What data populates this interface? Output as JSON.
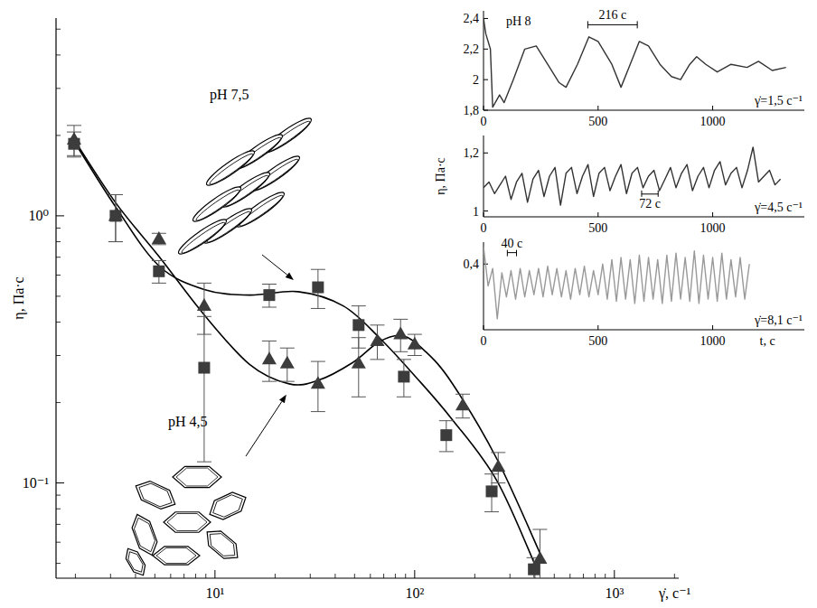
{
  "chart_data": [
    {
      "type": "scatter",
      "x_label": "γ̇, с⁻¹",
      "y_label": "η, Па·с",
      "log": true,
      "xlim": [
        1.6,
        2100
      ],
      "ylim": [
        0.044,
        5.5
      ],
      "xticks": [
        {
          "value": 10,
          "label": "10¹"
        },
        {
          "value": 100,
          "label": "10²"
        },
        {
          "value": 1000,
          "label": "10³"
        }
      ],
      "yticks": [
        {
          "value": 0.1,
          "label": "10⁻¹"
        },
        {
          "value": 1,
          "label": "10⁰"
        }
      ],
      "xticks_minor": [
        2,
        3,
        4,
        5,
        6,
        7,
        8,
        9,
        20,
        30,
        40,
        50,
        60,
        70,
        80,
        90,
        200,
        300,
        400,
        500,
        600,
        700,
        800,
        900,
        2000
      ],
      "yticks_minor": [
        0.05,
        0.06,
        0.07,
        0.08,
        0.09,
        0.2,
        0.3,
        0.4,
        0.5,
        0.6,
        0.7,
        0.8,
        0.9,
        2,
        3,
        4,
        5
      ],
      "series": [
        {
          "name": "pH 7,5",
          "marker": "square",
          "color": "#3c3c3c",
          "x": [
            1.97,
            3.18,
            5.24,
            8.83,
            18.7,
            32.8,
            52.4,
            88.3,
            144,
            243,
            395
          ],
          "values": [
            1.86,
            1.0,
            0.62,
            0.27,
            0.505,
            0.54,
            0.39,
            0.25,
            0.151,
            0.093,
            0.0475
          ],
          "errors": [
            0.2,
            0.2,
            0.06,
            0.15,
            0.05,
            0.09,
            0.07,
            0.04,
            0.02,
            0.015,
            0.005
          ],
          "fit": {
            "x": [
              1.97,
              3.18,
              5.24,
              8.83,
              14.9,
              26.1,
              43.9,
              66.5,
              101,
              153,
              258,
              412
            ],
            "values": [
              1.9,
              1.08,
              0.65,
              0.53,
              0.505,
              0.52,
              0.46,
              0.35,
              0.25,
              0.174,
              0.102,
              0.047
            ]
          }
        },
        {
          "name": "pH 4,5",
          "marker": "triangle",
          "color": "#3c3c3c",
          "x": [
            1.97,
            3.18,
            5.24,
            8.83,
            18.7,
            23,
            32.8,
            52.4,
            65,
            85,
            100,
            174,
            262,
            424
          ],
          "values": [
            1.93,
            1.0,
            0.82,
            0.46,
            0.29,
            0.28,
            0.235,
            0.28,
            0.34,
            0.36,
            0.33,
            0.195,
            0.115,
            0.052
          ],
          "errors": [
            0.25,
            0.2,
            0.04,
            0.1,
            0.05,
            0.04,
            0.05,
            0.07,
            0.05,
            0.05,
            0.03,
            0.02,
            0.015,
            0.015
          ],
          "fit": {
            "x": [
              1.97,
              3.18,
              5.24,
              8.83,
              14.9,
              23.5,
              32.8,
              48.8,
              66.5,
              86.6,
              112,
              153,
              258,
              434
            ],
            "values": [
              1.93,
              1.12,
              0.705,
              0.426,
              0.278,
              0.235,
              0.242,
              0.282,
              0.338,
              0.356,
              0.313,
              0.238,
              0.123,
              0.0525
            ]
          }
        }
      ]
    },
    {
      "type": "line",
      "annotation": "pH 8",
      "rate_label": "γ̇=1,5 с⁻¹",
      "color": "#333333",
      "xlim": [
        0,
        1400
      ],
      "ylim": [
        1.8,
        2.45
      ],
      "xticks": [
        0,
        500,
        1000
      ],
      "yticks": [
        {
          "value": 1.8,
          "label": "1,8"
        },
        2,
        {
          "value": 2.2,
          "label": "2,2"
        },
        {
          "value": 2.4,
          "label": "2,4"
        }
      ],
      "period": {
        "label": "216 с",
        "start": 455,
        "end": 671
      },
      "x": [
        0,
        10,
        30,
        40,
        70,
        90,
        130,
        180,
        230,
        280,
        330,
        360,
        410,
        460,
        500,
        560,
        600,
        640,
        680,
        720,
        770,
        820,
        860,
        900,
        930,
        970,
        1020,
        1080,
        1150,
        1200,
        1260,
        1320
      ],
      "values": [
        2.4,
        2.3,
        2.2,
        1.82,
        1.9,
        1.85,
        2.0,
        2.2,
        2.22,
        2.1,
        1.98,
        1.95,
        2.1,
        2.28,
        2.25,
        2.1,
        1.95,
        2.1,
        2.25,
        2.22,
        2.1,
        2.02,
        2.0,
        2.1,
        2.15,
        2.1,
        2.05,
        2.1,
        2.08,
        2.12,
        2.06,
        2.08
      ]
    },
    {
      "type": "line",
      "y_label": "η, Па·с",
      "rate_label": "γ̇=4,5 с⁻¹",
      "color": "#333333",
      "xlim": [
        0,
        1400
      ],
      "ylim": [
        0.98,
        1.26
      ],
      "xticks": [
        0,
        500,
        1000
      ],
      "yticks": [
        1,
        {
          "value": 1.2,
          "label": "1,2"
        }
      ],
      "period": {
        "label": "72 с",
        "start": 690,
        "end": 762
      },
      "x": [
        0,
        24,
        48,
        72,
        96,
        120,
        144,
        168,
        192,
        216,
        240,
        264,
        288,
        312,
        336,
        360,
        384,
        408,
        432,
        456,
        480,
        504,
        528,
        552,
        576,
        600,
        624,
        648,
        672,
        696,
        720,
        744,
        768,
        792,
        816,
        840,
        864,
        888,
        912,
        936,
        960,
        984,
        1008,
        1032,
        1056,
        1080,
        1104,
        1128,
        1152,
        1176,
        1200,
        1224,
        1248,
        1272,
        1296
      ],
      "values": [
        1.08,
        1.1,
        1.06,
        1.09,
        1.12,
        1.04,
        1.1,
        1.13,
        1.03,
        1.11,
        1.14,
        1.05,
        1.12,
        1.15,
        1.02,
        1.13,
        1.15,
        1.06,
        1.12,
        1.16,
        1.05,
        1.13,
        1.15,
        1.07,
        1.12,
        1.16,
        1.06,
        1.13,
        1.15,
        1.08,
        1.12,
        1.14,
        1.07,
        1.11,
        1.15,
        1.08,
        1.13,
        1.16,
        1.07,
        1.12,
        1.15,
        1.08,
        1.14,
        1.17,
        1.09,
        1.13,
        1.15,
        1.08,
        1.14,
        1.22,
        1.1,
        1.12,
        1.14,
        1.09,
        1.11
      ]
    },
    {
      "type": "line",
      "x_label": "t, с",
      "rate_label": "γ̇=8,1 с⁻¹",
      "color": "#999999",
      "xlim": [
        0,
        1400
      ],
      "ylim": [
        0.1,
        0.5
      ],
      "xticks": [
        0,
        500,
        1000
      ],
      "yticks": [
        {
          "value": 0.4,
          "label": "0,4"
        }
      ],
      "period": {
        "label": "40 с",
        "start": 104,
        "end": 144
      },
      "x": [
        0,
        20,
        40,
        60,
        80,
        100,
        120,
        140,
        160,
        180,
        200,
        220,
        240,
        260,
        280,
        300,
        320,
        340,
        360,
        380,
        400,
        420,
        440,
        460,
        480,
        500,
        520,
        540,
        560,
        580,
        600,
        620,
        640,
        660,
        680,
        700,
        720,
        740,
        760,
        780,
        800,
        820,
        840,
        860,
        880,
        900,
        920,
        940,
        960,
        980,
        1000,
        1020,
        1040,
        1060,
        1080,
        1100,
        1120,
        1140,
        1160
      ],
      "values": [
        0.48,
        0.3,
        0.38,
        0.15,
        0.36,
        0.25,
        0.37,
        0.24,
        0.38,
        0.25,
        0.37,
        0.26,
        0.38,
        0.25,
        0.39,
        0.26,
        0.38,
        0.25,
        0.37,
        0.24,
        0.38,
        0.26,
        0.39,
        0.25,
        0.37,
        0.26,
        0.4,
        0.24,
        0.42,
        0.23,
        0.43,
        0.24,
        0.42,
        0.22,
        0.44,
        0.23,
        0.43,
        0.24,
        0.42,
        0.22,
        0.44,
        0.23,
        0.45,
        0.24,
        0.43,
        0.23,
        0.46,
        0.22,
        0.44,
        0.24,
        0.43,
        0.23,
        0.45,
        0.24,
        0.42,
        0.25,
        0.43,
        0.24,
        0.4
      ]
    }
  ]
}
